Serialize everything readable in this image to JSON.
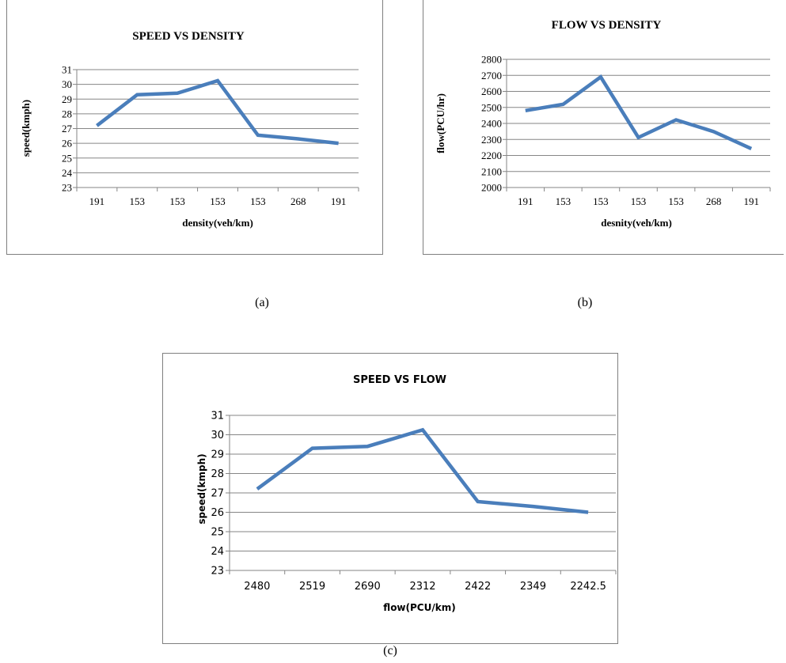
{
  "colors": {
    "line": "#4a7ebb",
    "grid": "#868686",
    "axis": "#868686",
    "frame": "#7f7f7f"
  },
  "captions": {
    "a": "(a)",
    "b": "(b)",
    "c": "(c)"
  },
  "chart_data": [
    {
      "type": "line",
      "title": "SPEED VS DENSITY",
      "xlabel": "density(veh/km)",
      "ylabel": "speed(kmph)",
      "categories": [
        "191",
        "153",
        "153",
        "153",
        "153",
        "268",
        "191"
      ],
      "series": [
        {
          "values": [
            27.2,
            29.3,
            29.4,
            30.25,
            26.55,
            26.3,
            26.0
          ]
        }
      ],
      "ylim": [
        23,
        31
      ],
      "yticks": [
        23,
        24,
        25,
        26,
        27,
        28,
        29,
        30,
        31
      ],
      "ytick_labels": [
        "23",
        "24",
        "25",
        "26",
        "27",
        "28",
        "29",
        "30",
        "31"
      ],
      "grid": true,
      "legend": "none"
    },
    {
      "type": "line",
      "title": "FLOW VS DENSITY",
      "xlabel": "desnity(veh/km)",
      "ylabel": "flow(PCU/hr)",
      "categories": [
        "191",
        "153",
        "153",
        "153",
        "153",
        "268",
        "191"
      ],
      "series": [
        {
          "values": [
            2480,
            2519,
            2690,
            2312,
            2422,
            2349,
            2242.5
          ]
        }
      ],
      "ylim": [
        2000,
        2800
      ],
      "yticks": [
        2000,
        2100,
        2200,
        2300,
        2400,
        2500,
        2600,
        2700,
        2800
      ],
      "ytick_labels": [
        "2000",
        "2100",
        "2200",
        "2300",
        "2400",
        "2500",
        "2600",
        "2700",
        "2800"
      ],
      "grid": true,
      "legend": "none"
    },
    {
      "type": "line",
      "title": "SPEED VS FLOW",
      "xlabel": "flow(PCU/km)",
      "ylabel": "speed(kmph)",
      "categories": [
        "2480",
        "2519",
        "2690",
        "2312",
        "2422",
        "2349",
        "2242.5"
      ],
      "series": [
        {
          "values": [
            27.2,
            29.3,
            29.4,
            30.25,
            26.55,
            26.3,
            26.0
          ]
        }
      ],
      "ylim": [
        23,
        31
      ],
      "yticks": [
        23,
        24,
        25,
        26,
        27,
        28,
        29,
        30,
        31
      ],
      "ytick_labels": [
        "23",
        "24",
        "25",
        "26",
        "27",
        "28",
        "29",
        "30",
        "31"
      ],
      "grid": true,
      "legend": "none"
    }
  ]
}
